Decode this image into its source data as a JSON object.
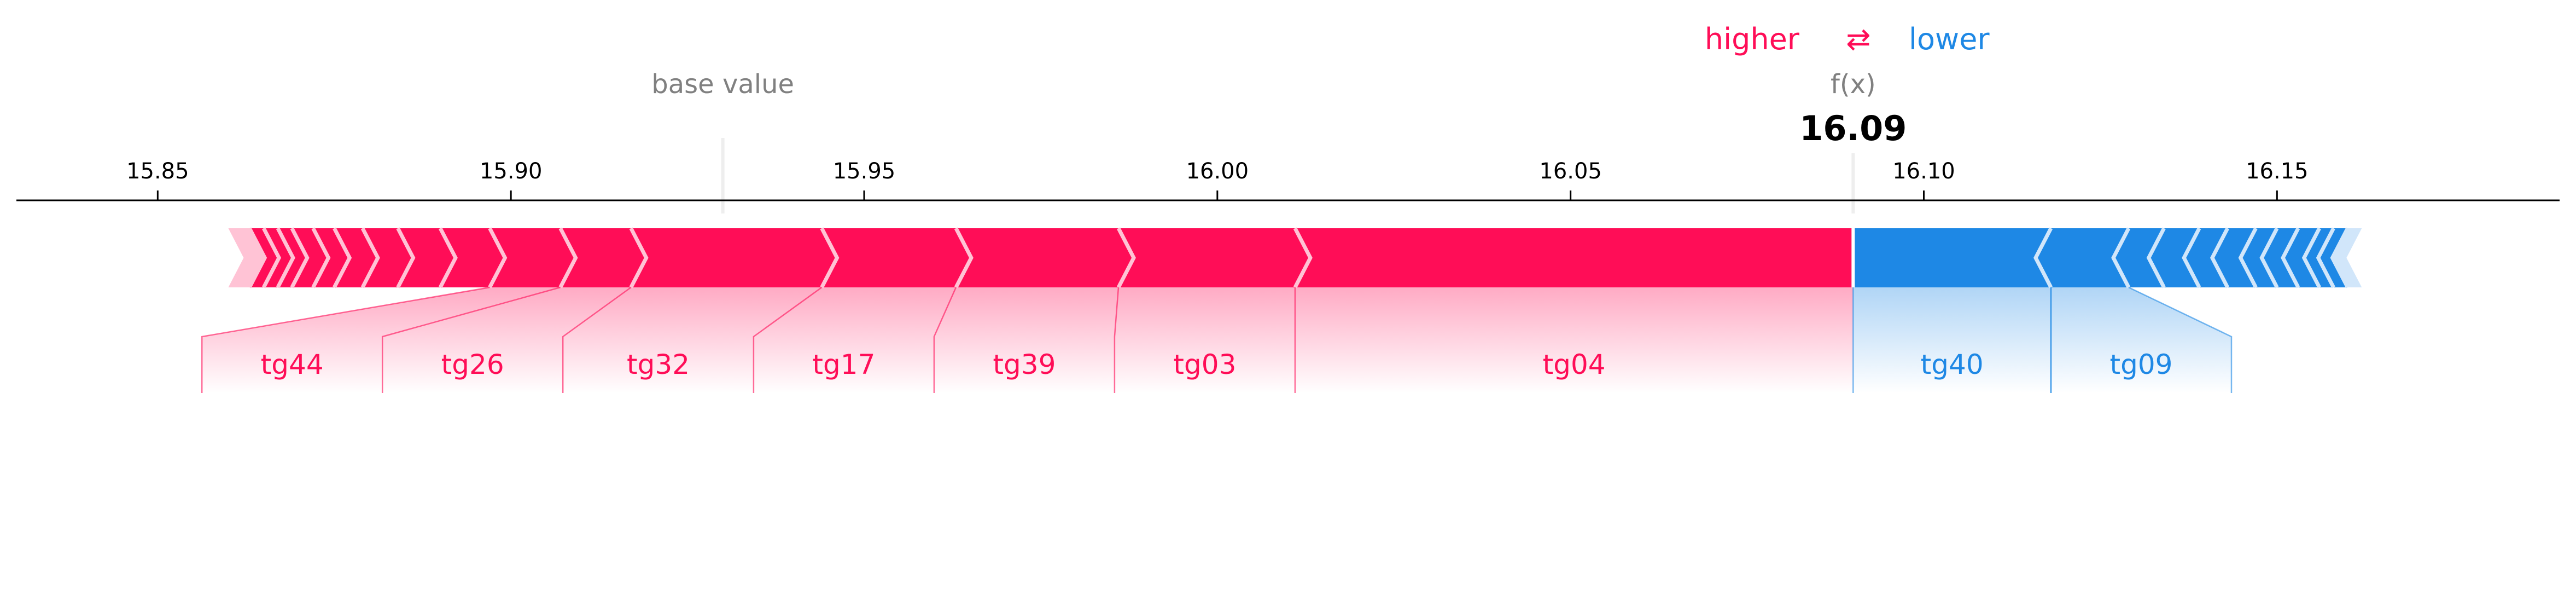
{
  "chart_data": {
    "type": "force",
    "legend": {
      "higher": "higher",
      "lower": "lower",
      "arrows": "⇄"
    },
    "base_value_label": "base value",
    "base_value": 15.93,
    "fx_label": "f(x)",
    "fx_value": 16.09,
    "fx_value_text": "16.09",
    "xlim": [
      15.83,
      16.19
    ],
    "ticks": [
      {
        "value": 15.85,
        "label": "15.85"
      },
      {
        "value": 15.9,
        "label": "15.90"
      },
      {
        "value": 15.95,
        "label": "15.95"
      },
      {
        "value": 16.0,
        "label": "16.00"
      },
      {
        "value": 16.05,
        "label": "16.05"
      },
      {
        "value": 16.1,
        "label": "16.10"
      },
      {
        "value": 16.15,
        "label": "16.15"
      }
    ],
    "positive_features": [
      {
        "name": "tg04",
        "start": 16.011,
        "end": 16.09
      },
      {
        "name": "tg03",
        "start": 15.986,
        "end": 16.011
      },
      {
        "name": "tg39",
        "start": 15.963,
        "end": 15.986
      },
      {
        "name": "tg17",
        "start": 15.944,
        "end": 15.963
      },
      {
        "name": "tg32",
        "start": 15.917,
        "end": 15.944
      },
      {
        "name": "tg26",
        "start": 15.907,
        "end": 15.917
      },
      {
        "name": "tg44",
        "start": 15.897,
        "end": 15.907
      }
    ],
    "positive_small_boundaries": [
      15.89,
      15.884,
      15.879,
      15.875,
      15.872,
      15.869,
      15.867,
      15.865,
      15.863
    ],
    "positive_left_end": 15.86,
    "negative_features": [
      {
        "name": "tg40",
        "start": 16.09,
        "end": 16.118
      },
      {
        "name": "tg09",
        "start": 16.118,
        "end": 16.129
      }
    ],
    "negative_small_boundaries": [
      16.134,
      16.139,
      16.143,
      16.147,
      16.15,
      16.153,
      16.156,
      16.158,
      16.16
    ],
    "negative_right_end": 16.162,
    "colors": {
      "positive": "#ff0d57",
      "negative": "#1e88e5",
      "positive_light": "#ffc3d5",
      "negative_light": "#d1e6fa",
      "axis": "#000000",
      "muted": "#808080"
    }
  }
}
